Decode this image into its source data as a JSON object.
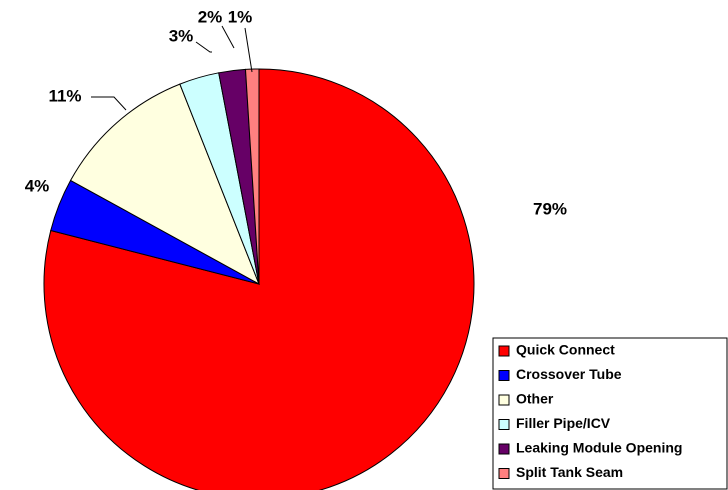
{
  "chart_data": {
    "type": "pie",
    "categories": [
      "Quick Connect",
      "Crossover Tube",
      "Other",
      "Filler Pipe/ICV",
      "Leaking Module Opening",
      "Split Tank Seam"
    ],
    "values": [
      79,
      4,
      11,
      3,
      2,
      1
    ],
    "value_labels": [
      "79%",
      "4%",
      "11%",
      "3%",
      "2%",
      "1%"
    ],
    "colors": [
      "#ff0000",
      "#0000ff",
      "#ffffe0",
      "#ccffff",
      "#660066",
      "#ff8080"
    ],
    "legend": "bottom-right"
  }
}
